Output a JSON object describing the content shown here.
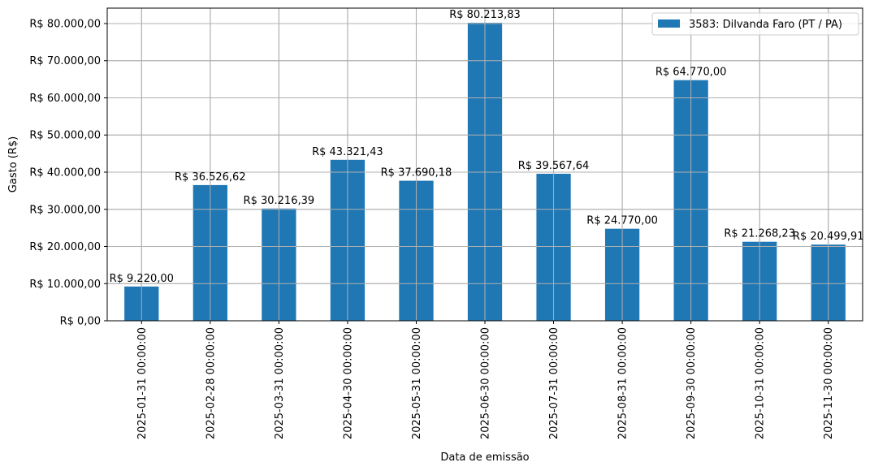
{
  "chart_data": {
    "type": "bar",
    "title": "",
    "xlabel": "Data de emissão",
    "ylabel": "Gasto (R$)",
    "categories": [
      "2025-01-31 00:00:00",
      "2025-02-28 00:00:00",
      "2025-03-31 00:00:00",
      "2025-04-30 00:00:00",
      "2025-05-31 00:00:00",
      "2025-06-30 00:00:00",
      "2025-07-31 00:00:00",
      "2025-08-31 00:00:00",
      "2025-09-30 00:00:00",
      "2025-10-31 00:00:00",
      "2025-11-30 00:00:00"
    ],
    "series": [
      {
        "name": "3583: Dilvanda Faro (PT / PA)",
        "color": "#1f77b4",
        "values": [
          9220.0,
          36526.62,
          30216.39,
          43321.43,
          37690.18,
          80213.83,
          39567.64,
          24770.0,
          64770.0,
          21268.23,
          20499.91
        ],
        "labels": [
          "R$ 9.220,00",
          "R$ 36.526,62",
          "R$ 30.216,39",
          "R$ 43.321,43",
          "R$ 37.690,18",
          "R$ 80.213,83",
          "R$ 39.567,64",
          "R$ 24.770,00",
          "R$ 64.770,00",
          "R$ 21.268,23",
          "R$ 20.499,91"
        ]
      }
    ],
    "yticks": [
      0,
      10000,
      20000,
      30000,
      40000,
      50000,
      60000,
      70000,
      80000
    ],
    "ytick_labels": [
      "R$ 0,00",
      "R$ 10.000,00",
      "R$ 20.000,00",
      "R$ 30.000,00",
      "R$ 40.000,00",
      "R$ 50.000,00",
      "R$ 60.000,00",
      "R$ 70.000,00",
      "R$ 80.000,00"
    ],
    "ylim": [
      0,
      84153
    ],
    "grid": true,
    "legend_position": "upper right"
  },
  "colors": {
    "bar": "#1f77b4",
    "grid": "#b0b0b0",
    "axis": "#000000"
  }
}
